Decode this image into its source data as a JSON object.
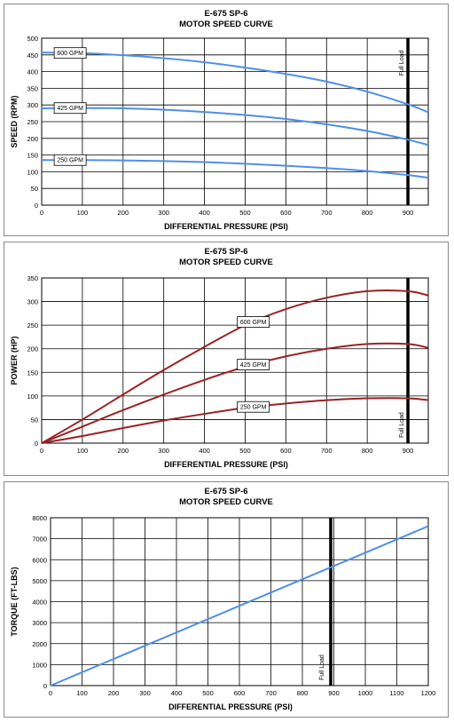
{
  "chart_data": [
    {
      "type": "line",
      "title": "E-675 SP-6",
      "subtitle": "MOTOR SPEED CURVE",
      "xlabel": "DIFFERENTIAL PRESSURE (PSI)",
      "ylabel": "SPEED (RPM)",
      "xlim": [
        0,
        950
      ],
      "ylim": [
        0,
        500
      ],
      "xticks": [
        0,
        100,
        200,
        300,
        400,
        500,
        600,
        700,
        800,
        900
      ],
      "yticks": [
        0,
        50,
        100,
        150,
        200,
        250,
        300,
        350,
        400,
        450,
        500
      ],
      "grid": true,
      "line_color": "#4f8fe8",
      "series": [
        {
          "name": "600 GPM",
          "x": [
            0,
            100,
            200,
            300,
            400,
            500,
            600,
            700,
            800,
            900,
            950
          ],
          "y": [
            457,
            455,
            449,
            440,
            428,
            412,
            393,
            370,
            340,
            302,
            278
          ]
        },
        {
          "name": "425 GPM",
          "x": [
            0,
            100,
            200,
            300,
            400,
            500,
            600,
            700,
            800,
            900,
            950
          ],
          "y": [
            290,
            291,
            290,
            286,
            279,
            270,
            258,
            242,
            222,
            196,
            180
          ]
        },
        {
          "name": "250 GPM",
          "x": [
            0,
            100,
            200,
            300,
            400,
            500,
            600,
            700,
            800,
            900,
            950
          ],
          "y": [
            135,
            135,
            134,
            132,
            129,
            124,
            118,
            111,
            102,
            90,
            82
          ]
        }
      ],
      "label_x": 70,
      "annotation": {
        "text": "Full Load",
        "x": 900
      }
    },
    {
      "type": "line",
      "title": "E-675 SP-6",
      "subtitle": "MOTOR SPEED CURVE",
      "xlabel": "DIFFERENTIAL PRESSURE (PSI)",
      "ylabel": "POWER (HP)",
      "xlim": [
        0,
        950
      ],
      "ylim": [
        0,
        350
      ],
      "xticks": [
        0,
        100,
        200,
        300,
        400,
        500,
        600,
        700,
        800,
        900
      ],
      "yticks": [
        0,
        50,
        100,
        150,
        200,
        250,
        300,
        350
      ],
      "grid": true,
      "line_color": "#9b2222",
      "series": [
        {
          "name": "600 GPM",
          "x": [
            0,
            100,
            200,
            300,
            400,
            500,
            600,
            700,
            800,
            900,
            950
          ],
          "y": [
            0,
            50,
            103,
            155,
            204,
            250,
            284,
            308,
            322,
            322,
            313
          ]
        },
        {
          "name": "425 GPM",
          "x": [
            0,
            100,
            200,
            300,
            400,
            500,
            600,
            700,
            800,
            900,
            950
          ],
          "y": [
            0,
            35,
            70,
            103,
            134,
            162,
            184,
            200,
            210,
            210,
            202
          ]
        },
        {
          "name": "250 GPM",
          "x": [
            0,
            100,
            200,
            300,
            400,
            500,
            600,
            700,
            800,
            900,
            950
          ],
          "y": [
            0,
            15,
            32,
            48,
            62,
            75,
            84,
            91,
            95,
            95,
            91
          ]
        }
      ],
      "label_x": 520,
      "annotation": {
        "text": "Full Load",
        "x": 900
      }
    },
    {
      "type": "line",
      "title": "E-675 SP-6",
      "subtitle": "MOTOR SPEED CURVE",
      "xlabel": "DIFFERENTIAL PRESSURE (PSI)",
      "ylabel": "TORQUE (FT-LBS)",
      "xlim": [
        0,
        1200
      ],
      "ylim": [
        0,
        8000
      ],
      "xticks": [
        0,
        100,
        200,
        300,
        400,
        500,
        600,
        700,
        800,
        900,
        1000,
        1100,
        1200
      ],
      "yticks": [
        0,
        1000,
        2000,
        3000,
        4000,
        5000,
        6000,
        7000,
        8000
      ],
      "grid": true,
      "line_color": "#4f8fe8",
      "series": [
        {
          "x": [
            0,
            1200
          ],
          "y": [
            0,
            7600
          ]
        }
      ],
      "annotation": {
        "text": "Full Load",
        "x": 890
      }
    }
  ]
}
